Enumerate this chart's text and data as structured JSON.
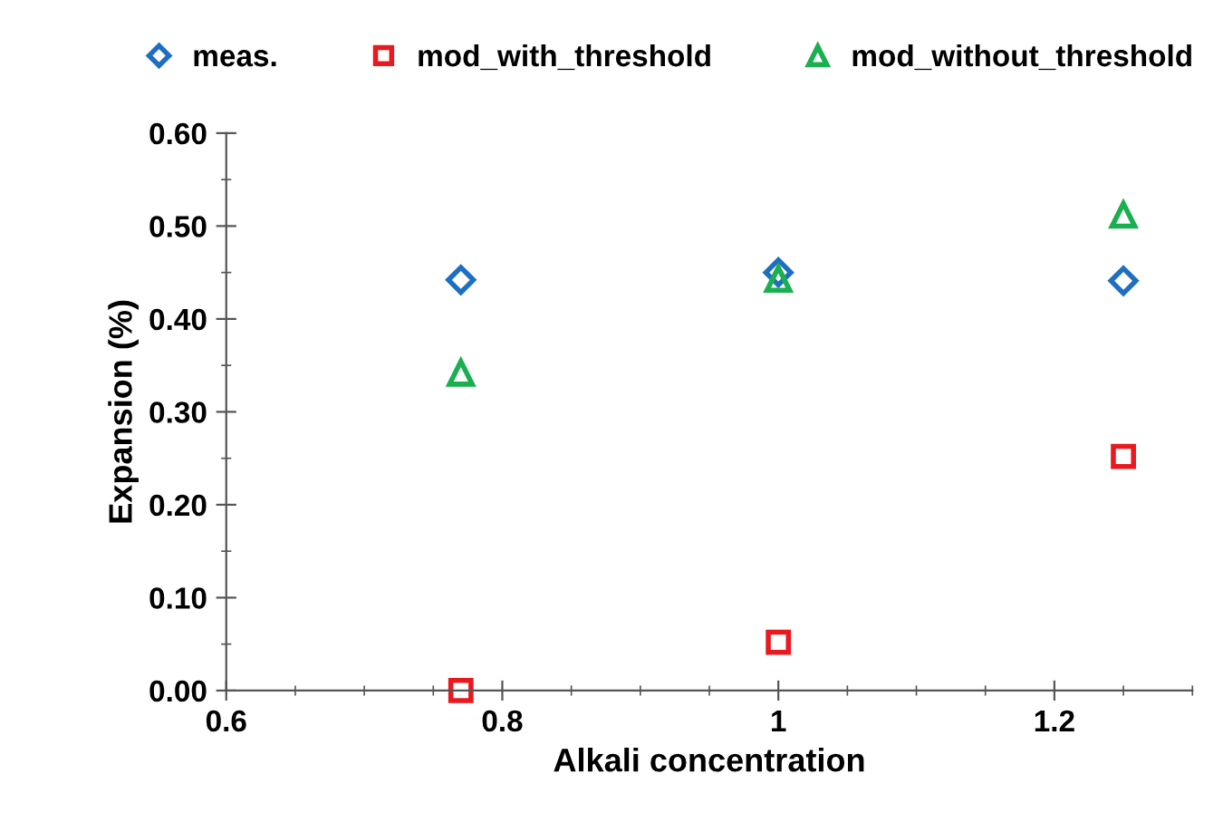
{
  "chart_data": {
    "type": "scatter",
    "xlabel": "Alkali concentration",
    "ylabel": "Expansion (%)",
    "x": [
      0.77,
      1.0,
      1.25
    ],
    "series": [
      {
        "name": "meas.",
        "color": "#1f6fc0",
        "marker": "diamond",
        "values": [
          0.442,
          0.45,
          0.441
        ]
      },
      {
        "name": "mod_with_threshold",
        "color": "#e8191f",
        "marker": "square",
        "values": [
          0.0,
          0.052,
          0.252
        ]
      },
      {
        "name": "mod_without_threshold",
        "color": "#1aaf4f",
        "marker": "triangle",
        "values": [
          0.342,
          0.443,
          0.512
        ]
      }
    ],
    "xlim": [
      0.6,
      1.3
    ],
    "xticks": [
      0.6,
      0.8,
      {
        "value": 1,
        "label": "1"
      },
      1.2
    ],
    "ylim": [
      0,
      0.6
    ],
    "yticks": [
      {
        "value": 0,
        "label": "0.00"
      },
      {
        "value": 0.1,
        "label": "0.10"
      },
      {
        "value": 0.2,
        "label": "0.20"
      },
      {
        "value": 0.3,
        "label": "0.30"
      },
      {
        "value": 0.4,
        "label": "0.40"
      },
      {
        "value": 0.5,
        "label": "0.50"
      },
      {
        "value": 0.6,
        "label": "0.60"
      }
    ],
    "grid": false,
    "legend": "top"
  }
}
